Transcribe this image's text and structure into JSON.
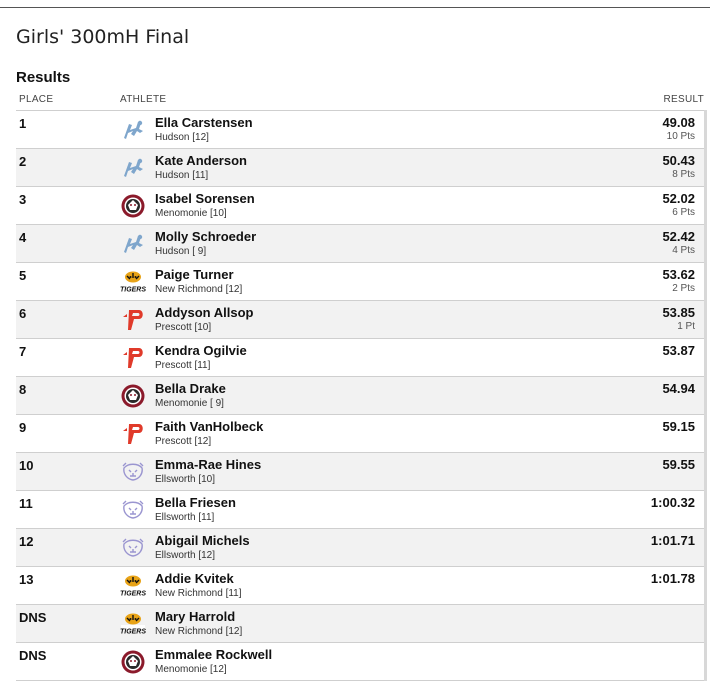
{
  "page": {
    "title": "Girls' 300mH Final"
  },
  "results": {
    "section_title": "Results",
    "headers": {
      "place": "PLACE",
      "athlete": "ATHLETE",
      "result": "RESULT"
    },
    "rows": [
      {
        "place": "1",
        "logo": "hudson-logo-icon",
        "name": "Ella Carstensen",
        "school": "Hudson [12]",
        "mark": "49.08",
        "points": "10 Pts"
      },
      {
        "place": "2",
        "logo": "hudson-logo-icon",
        "name": "Kate Anderson",
        "school": "Hudson [11]",
        "mark": "50.43",
        "points": "8 Pts"
      },
      {
        "place": "3",
        "logo": "menomonie-logo-icon",
        "name": "Isabel Sorensen",
        "school": "Menomonie [10]",
        "mark": "52.02",
        "points": "6 Pts"
      },
      {
        "place": "4",
        "logo": "hudson-logo-icon",
        "name": "Molly Schroeder",
        "school": "Hudson [ 9]",
        "mark": "52.42",
        "points": "4 Pts"
      },
      {
        "place": "5",
        "logo": "new-richmond-logo-icon",
        "name": "Paige Turner",
        "school": "New Richmond [12]",
        "mark": "53.62",
        "points": "2 Pts"
      },
      {
        "place": "6",
        "logo": "prescott-logo-icon",
        "name": "Addyson Allsop",
        "school": "Prescott [10]",
        "mark": "53.85",
        "points": "1 Pt"
      },
      {
        "place": "7",
        "logo": "prescott-logo-icon",
        "name": "Kendra Ogilvie",
        "school": "Prescott [11]",
        "mark": "53.87",
        "points": ""
      },
      {
        "place": "8",
        "logo": "menomonie-logo-icon",
        "name": "Bella Drake",
        "school": "Menomonie [ 9]",
        "mark": "54.94",
        "points": ""
      },
      {
        "place": "9",
        "logo": "prescott-logo-icon",
        "name": "Faith VanHolbeck",
        "school": "Prescott [12]",
        "mark": "59.15",
        "points": ""
      },
      {
        "place": "10",
        "logo": "ellsworth-logo-icon",
        "name": "Emma-Rae Hines",
        "school": "Ellsworth [10]",
        "mark": "59.55",
        "points": ""
      },
      {
        "place": "11",
        "logo": "ellsworth-logo-icon",
        "name": "Bella Friesen",
        "school": "Ellsworth [11]",
        "mark": "1:00.32",
        "points": ""
      },
      {
        "place": "12",
        "logo": "ellsworth-logo-icon",
        "name": "Abigail Michels",
        "school": "Ellsworth [12]",
        "mark": "1:01.71",
        "points": ""
      },
      {
        "place": "13",
        "logo": "new-richmond-logo-icon",
        "name": "Addie Kvitek",
        "school": "New Richmond [11]",
        "mark": "1:01.78",
        "points": ""
      },
      {
        "place": "DNS",
        "logo": "new-richmond-logo-icon",
        "name": "Mary Harrold",
        "school": "New Richmond [12]",
        "mark": "",
        "points": ""
      },
      {
        "place": "DNS",
        "logo": "menomonie-logo-icon",
        "name": "Emmalee Rockwell",
        "school": "Menomonie [12]",
        "mark": "",
        "points": ""
      }
    ]
  },
  "logo_text": {
    "new_richmond": "TIGERS"
  },
  "colors": {
    "hudson": "#7fa6cc",
    "menomonie": "#8b1a2b",
    "new_richmond": "#e8a317",
    "prescott": "#e03a2a",
    "ellsworth": "#9a95d0"
  }
}
